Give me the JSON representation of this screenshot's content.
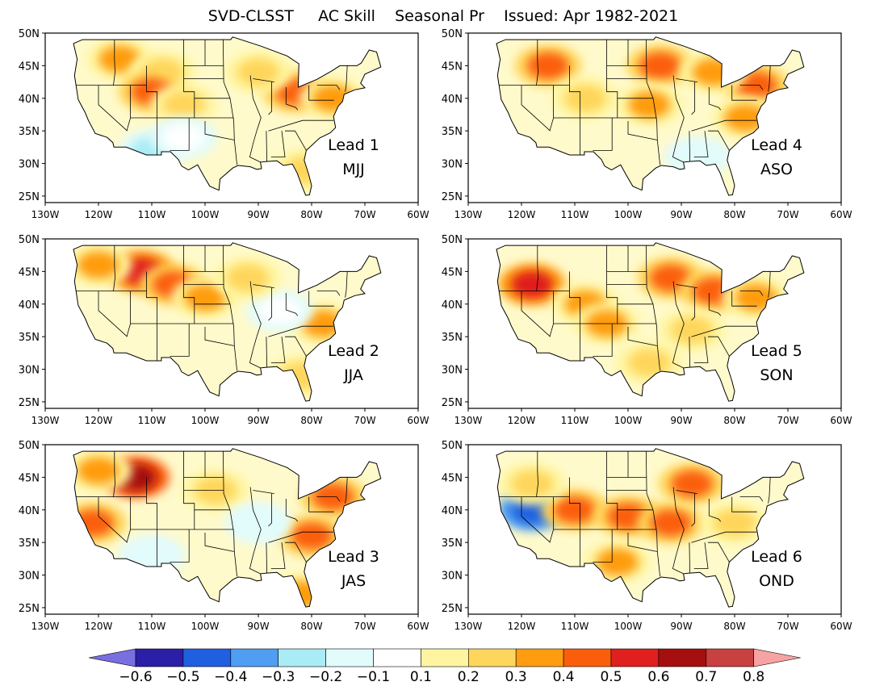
{
  "title": "SVD-CLSST     AC Skill    Seasonal Pr    Issued: Apr 1982-2021",
  "axes": {
    "lon_ticks": [
      "130W",
      "120W",
      "110W",
      "100W",
      "90W",
      "80W",
      "70W",
      "60W"
    ],
    "lat_ticks": [
      "25N",
      "30N",
      "35N",
      "40N",
      "45N",
      "50N"
    ],
    "lon_range": [
      -130,
      -60
    ],
    "lat_range": [
      24,
      50
    ]
  },
  "panels": [
    {
      "lead": "Lead 1",
      "season": "MJJ",
      "blobs": [
        {
          "lon": -116,
          "lat": 46,
          "level": 0.3
        },
        {
          "lon": -108,
          "lat": 44,
          "level": 0.2
        },
        {
          "lon": -110,
          "lat": 41,
          "level": 0.4
        },
        {
          "lon": -104,
          "lat": 39,
          "level": 0.2
        },
        {
          "lon": -83,
          "lat": 41,
          "level": 0.4
        },
        {
          "lon": -76,
          "lat": 40,
          "level": 0.3
        },
        {
          "lon": -90,
          "lat": 44,
          "level": 0.2
        },
        {
          "lon": -81,
          "lat": 29,
          "level": 0.2
        },
        {
          "lon": -110,
          "lat": 32,
          "level": -0.3
        },
        {
          "lon": -104,
          "lat": 34,
          "level": -0.1
        }
      ]
    },
    {
      "lead": "Lead 4",
      "season": "ASO",
      "blobs": [
        {
          "lon": -115,
          "lat": 45,
          "level": 0.4
        },
        {
          "lon": -94,
          "lat": 45,
          "level": 0.4
        },
        {
          "lon": -76,
          "lat": 42,
          "level": 0.4
        },
        {
          "lon": -84,
          "lat": 44,
          "level": 0.3
        },
        {
          "lon": -96,
          "lat": 39,
          "level": 0.3
        },
        {
          "lon": -78,
          "lat": 37,
          "level": 0.3
        },
        {
          "lon": -108,
          "lat": 40,
          "level": 0.2
        },
        {
          "lon": -87,
          "lat": 31,
          "level": -0.2
        }
      ]
    },
    {
      "lead": "Lead 2",
      "season": "JJA",
      "blobs": [
        {
          "lon": -112,
          "lat": 45,
          "level": 0.5
        },
        {
          "lon": -106,
          "lat": 43,
          "level": 0.4
        },
        {
          "lon": -120,
          "lat": 46,
          "level": 0.3
        },
        {
          "lon": -100,
          "lat": 41,
          "level": 0.3
        },
        {
          "lon": -78,
          "lat": 37,
          "level": 0.3
        },
        {
          "lon": -86,
          "lat": 39,
          "level": -0.1
        },
        {
          "lon": -82,
          "lat": 29,
          "level": 0.2
        },
        {
          "lon": -92,
          "lat": 44,
          "level": 0.2
        }
      ]
    },
    {
      "lead": "Lead 5",
      "season": "SON",
      "blobs": [
        {
          "lon": -118,
          "lat": 43,
          "level": 0.5
        },
        {
          "lon": -108,
          "lat": 40,
          "level": 0.3
        },
        {
          "lon": -92,
          "lat": 44,
          "level": 0.4
        },
        {
          "lon": -84,
          "lat": 42,
          "level": 0.4
        },
        {
          "lon": -76,
          "lat": 41,
          "level": 0.3
        },
        {
          "lon": -104,
          "lat": 37,
          "level": 0.3
        },
        {
          "lon": -88,
          "lat": 36,
          "level": 0.2
        },
        {
          "lon": -96,
          "lat": 31,
          "level": 0.2
        }
      ]
    },
    {
      "lead": "Lead 3",
      "season": "JAS",
      "blobs": [
        {
          "lon": -113,
          "lat": 45,
          "level": 0.6
        },
        {
          "lon": -120,
          "lat": 46,
          "level": 0.3
        },
        {
          "lon": -121,
          "lat": 38,
          "level": 0.4
        },
        {
          "lon": -76,
          "lat": 42,
          "level": 0.4
        },
        {
          "lon": -80,
          "lat": 36,
          "level": 0.4
        },
        {
          "lon": -98,
          "lat": 43,
          "level": 0.2
        },
        {
          "lon": -90,
          "lat": 38,
          "level": -0.2
        },
        {
          "lon": -110,
          "lat": 33,
          "level": -0.2
        },
        {
          "lon": -82,
          "lat": 27,
          "level": 0.3
        }
      ]
    },
    {
      "lead": "Lead 6",
      "season": "OND",
      "blobs": [
        {
          "lon": -118,
          "lat": 40,
          "level": -0.5
        },
        {
          "lon": -110,
          "lat": 40,
          "level": 0.4
        },
        {
          "lon": -100,
          "lat": 39,
          "level": 0.4
        },
        {
          "lon": -92,
          "lat": 38,
          "level": 0.4
        },
        {
          "lon": -88,
          "lat": 44,
          "level": 0.4
        },
        {
          "lon": -102,
          "lat": 32,
          "level": 0.3
        },
        {
          "lon": -80,
          "lat": 38,
          "level": 0.2
        },
        {
          "lon": -118,
          "lat": 44,
          "level": 0.2
        }
      ]
    }
  ],
  "colorbar": {
    "labels": [
      "-0.6",
      "-0.5",
      "-0.4",
      "-0.3",
      "-0.2",
      "-0.1",
      "0.1",
      "0.2",
      "0.3",
      "0.4",
      "0.5",
      "0.6",
      "0.7",
      "0.8"
    ],
    "colors": [
      "#7a6fe0",
      "#2a1fa6",
      "#1f5fe0",
      "#4f9ef2",
      "#a9ecf5",
      "#e2fbfb",
      "#ffffff",
      "#fff5a0",
      "#ffd65c",
      "#ff9c10",
      "#fb5e0b",
      "#e01f1f",
      "#a60f0f",
      "#c94040",
      "#f7a3a3"
    ]
  },
  "colors": {
    "land": "#ffffff",
    "border": "#000000"
  }
}
